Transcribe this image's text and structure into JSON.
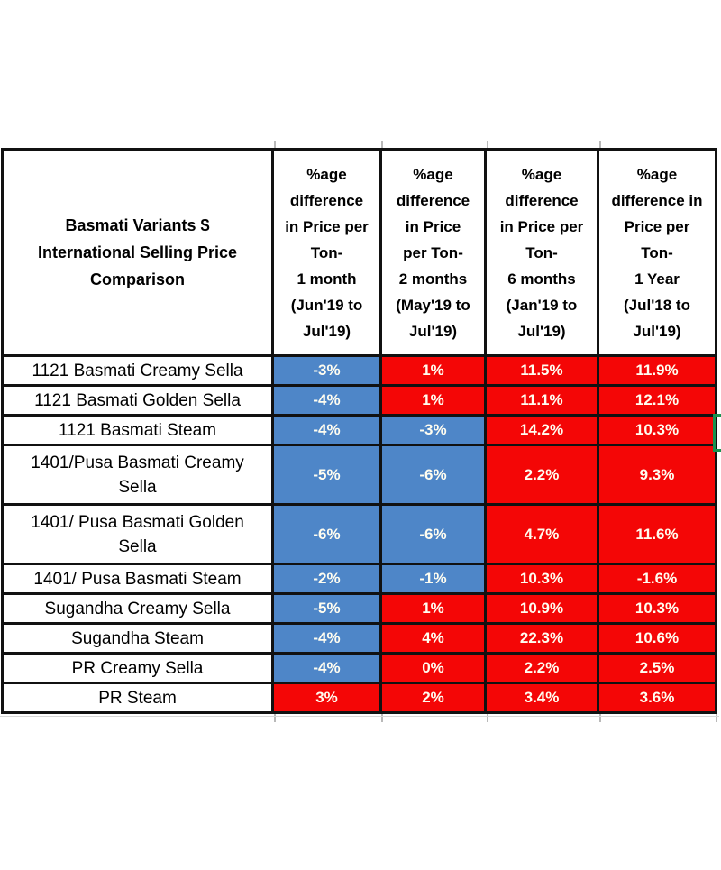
{
  "chart_data": {
    "type": "table",
    "title": "Basmati Variants $ International Selling Price Comparison",
    "corner_header": "Basmati Variants $\nInternational Selling Price\nComparison",
    "column_headers": [
      "%age\ndifference\nin Price per\nTon-\n1 month\n(Jun'19 to\nJul'19)",
      "%age\ndifference\nin Price\nper Ton-\n2 months\n(May'19 to\nJul'19)",
      "%age\ndifference\nin Price per\nTon-\n6 months\n(Jan'19 to\nJul'19)",
      "%age\ndifference in\nPrice per\nTon-\n1 Year\n(Jul'18 to\nJul'19)"
    ],
    "rows": [
      {
        "label": "1121 Basmati Creamy Sella",
        "values": [
          "-3%",
          "1%",
          "11.5%",
          "11.9%"
        ],
        "fills": [
          "blue",
          "red",
          "red",
          "red"
        ]
      },
      {
        "label": "1121 Basmati Golden Sella",
        "values": [
          "-4%",
          "1%",
          "11.1%",
          "12.1%"
        ],
        "fills": [
          "blue",
          "red",
          "red",
          "red"
        ]
      },
      {
        "label": "1121 Basmati Steam",
        "values": [
          "-4%",
          "-3%",
          "14.2%",
          "10.3%"
        ],
        "fills": [
          "blue",
          "blue",
          "red",
          "red"
        ]
      },
      {
        "label": "1401/Pusa Basmati Creamy\nSella",
        "values": [
          "-5%",
          "-6%",
          "2.2%",
          "9.3%"
        ],
        "fills": [
          "blue",
          "blue",
          "red",
          "red"
        ]
      },
      {
        "label": "1401/ Pusa Basmati Golden\nSella",
        "values": [
          "-6%",
          "-6%",
          "4.7%",
          "11.6%"
        ],
        "fills": [
          "blue",
          "blue",
          "red",
          "red"
        ]
      },
      {
        "label": "1401/ Pusa Basmati Steam",
        "values": [
          "-2%",
          "-1%",
          "10.3%",
          "-1.6%"
        ],
        "fills": [
          "blue",
          "blue",
          "red",
          "red"
        ]
      },
      {
        "label": "Sugandha Creamy Sella",
        "values": [
          "-5%",
          "1%",
          "10.9%",
          "10.3%"
        ],
        "fills": [
          "blue",
          "red",
          "red",
          "red"
        ]
      },
      {
        "label": "Sugandha Steam",
        "values": [
          "-4%",
          "4%",
          "22.3%",
          "10.6%"
        ],
        "fills": [
          "blue",
          "red",
          "red",
          "red"
        ]
      },
      {
        "label": "PR Creamy Sella",
        "values": [
          "-4%",
          "0%",
          "2.2%",
          "2.5%"
        ],
        "fills": [
          "blue",
          "red",
          "red",
          "red"
        ]
      },
      {
        "label": "PR Steam",
        "values": [
          "3%",
          "2%",
          "3.4%",
          "3.6%"
        ],
        "fills": [
          "red",
          "red",
          "red",
          "red"
        ]
      }
    ],
    "colors": {
      "blue_fill": "#4e86c8",
      "red_fill": "#f40606",
      "value_text": "#fffdf0",
      "border": "#111111",
      "selection_green": "#17934f"
    }
  }
}
